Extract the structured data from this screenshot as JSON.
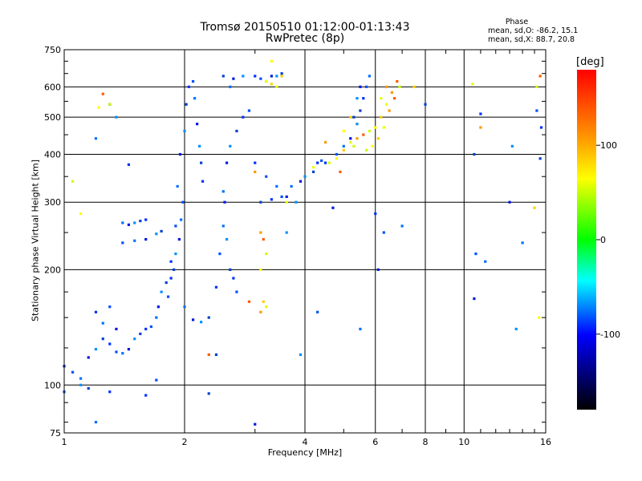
{
  "header": {
    "title_line1": "Tromsø 20150510 01:12:00-01:13:43",
    "title_line2": "RwPretec (8p)"
  },
  "phase_info": {
    "heading": "Phase",
    "o_stats": "mean, sd,O: -86.2, 15.1",
    "x_stats": "mean, sd,X:  88.7, 20.8"
  },
  "colorbar": {
    "unit": "[deg]",
    "range": [
      -180,
      180
    ],
    "ticks": [
      100,
      0,
      -100
    ],
    "tick_labels": [
      "100",
      "0",
      "-100"
    ],
    "colors": [
      "#ff0000",
      "#ffff00",
      "#00ff00",
      "#00ffff",
      "#0000ff",
      "#000000"
    ]
  },
  "chart_data": {
    "type": "scatter",
    "title": "Tromsø 20150510 01:12:00-01:13:43",
    "subtitle": "RwPretec (8p)",
    "xlabel": "Frequency [MHz]",
    "ylabel": "Stationary phase Virtual Height [km]",
    "x_scale": "log",
    "y_scale": "log",
    "xlim": [
      1,
      16
    ],
    "ylim": [
      75,
      750
    ],
    "grid": true,
    "x_ticks": [
      1,
      2,
      4,
      6,
      8,
      10,
      16
    ],
    "x_tick_labels": [
      "1",
      "2",
      "4",
      "6",
      "8",
      "10",
      "16"
    ],
    "y_ticks": [
      75,
      100,
      200,
      300,
      400,
      500,
      600,
      750
    ],
    "y_tick_labels": [
      "75",
      "100",
      "200",
      "300",
      "400",
      "500",
      "600",
      "750"
    ],
    "series": [
      {
        "mode": "o",
        "points": [
          [
            1.0,
            112
          ],
          [
            1.05,
            108
          ],
          [
            1.1,
            104
          ],
          [
            1.15,
            118
          ],
          [
            1.2,
            124
          ],
          [
            1.25,
            132
          ],
          [
            1.3,
            128
          ],
          [
            1.35,
            122
          ],
          [
            1.4,
            121
          ],
          [
            1.45,
            124
          ],
          [
            1.5,
            132
          ],
          [
            1.55,
            136
          ],
          [
            1.6,
            140
          ],
          [
            1.65,
            142
          ],
          [
            1.7,
            150
          ],
          [
            1.72,
            160
          ],
          [
            1.75,
            175
          ],
          [
            1.8,
            185
          ],
          [
            1.85,
            210
          ],
          [
            1.9,
            260
          ],
          [
            1.92,
            330
          ],
          [
            1.95,
            400
          ],
          [
            2.0,
            460
          ],
          [
            2.02,
            540
          ],
          [
            2.05,
            600
          ],
          [
            2.1,
            620
          ],
          [
            2.12,
            560
          ],
          [
            2.15,
            480
          ],
          [
            2.18,
            420
          ],
          [
            2.2,
            380
          ],
          [
            2.22,
            340
          ],
          [
            1.98,
            300
          ],
          [
            1.96,
            270
          ],
          [
            1.94,
            240
          ],
          [
            1.9,
            220
          ],
          [
            1.88,
            200
          ],
          [
            1.85,
            190
          ],
          [
            1.82,
            170
          ],
          [
            2.0,
            160
          ],
          [
            2.1,
            148
          ],
          [
            2.2,
            146
          ],
          [
            2.3,
            150
          ],
          [
            2.4,
            180
          ],
          [
            2.45,
            220
          ],
          [
            2.5,
            260
          ],
          [
            2.52,
            300
          ],
          [
            2.55,
            240
          ],
          [
            2.6,
            200
          ],
          [
            2.65,
            190
          ],
          [
            2.7,
            175
          ],
          [
            2.5,
            320
          ],
          [
            2.55,
            380
          ],
          [
            2.6,
            420
          ],
          [
            2.7,
            460
          ],
          [
            2.8,
            500
          ],
          [
            2.9,
            520
          ],
          [
            2.6,
            600
          ],
          [
            2.65,
            630
          ],
          [
            2.8,
            640
          ],
          [
            2.5,
            640
          ],
          [
            3.0,
            640
          ],
          [
            3.1,
            630
          ],
          [
            3.2,
            620
          ],
          [
            3.3,
            640
          ],
          [
            3.4,
            640
          ],
          [
            3.5,
            650
          ],
          [
            3.0,
            380
          ],
          [
            3.2,
            350
          ],
          [
            3.4,
            330
          ],
          [
            3.6,
            310
          ],
          [
            3.8,
            300
          ],
          [
            3.1,
            300
          ],
          [
            3.3,
            305
          ],
          [
            3.5,
            310
          ],
          [
            3.7,
            330
          ],
          [
            3.9,
            340
          ],
          [
            4.0,
            350
          ],
          [
            4.2,
            360
          ],
          [
            4.5,
            380
          ],
          [
            4.8,
            400
          ],
          [
            5.0,
            420
          ],
          [
            5.2,
            440
          ],
          [
            5.4,
            480
          ],
          [
            5.5,
            520
          ],
          [
            5.6,
            560
          ],
          [
            5.7,
            600
          ],
          [
            5.8,
            640
          ],
          [
            5.5,
            600
          ],
          [
            5.4,
            560
          ],
          [
            5.3,
            500
          ],
          [
            4.3,
            380
          ],
          [
            4.4,
            385
          ],
          [
            1.4,
            265
          ],
          [
            1.45,
            262
          ],
          [
            1.5,
            265
          ],
          [
            1.55,
            268
          ],
          [
            1.6,
            270
          ],
          [
            1.4,
            235
          ],
          [
            1.5,
            238
          ],
          [
            1.6,
            240
          ],
          [
            1.7,
            248
          ],
          [
            1.75,
            252
          ],
          [
            1.2,
            155
          ],
          [
            1.3,
            160
          ],
          [
            1.25,
            145
          ],
          [
            1.35,
            140
          ],
          [
            1.1,
            100
          ],
          [
            1.15,
            98
          ],
          [
            1.3,
            96
          ],
          [
            1.0,
            96
          ],
          [
            1.2,
            440
          ],
          [
            1.3,
            540
          ],
          [
            1.35,
            500
          ],
          [
            10.6,
            400
          ],
          [
            11.0,
            510
          ],
          [
            10.7,
            220
          ],
          [
            11.3,
            210
          ],
          [
            13.0,
            300
          ],
          [
            13.2,
            420
          ],
          [
            15.5,
            390
          ],
          [
            15.6,
            470
          ],
          [
            15.2,
            520
          ],
          [
            14.0,
            235
          ],
          [
            10.6,
            168
          ],
          [
            13.5,
            140
          ],
          [
            8.0,
            540
          ],
          [
            6.0,
            280
          ],
          [
            6.3,
            250
          ],
          [
            7.0,
            260
          ],
          [
            4.7,
            290
          ],
          [
            3.6,
            250
          ],
          [
            2.3,
            95
          ],
          [
            1.6,
            94
          ],
          [
            1.7,
            103
          ],
          [
            1.2,
            80
          ],
          [
            3.0,
            79
          ],
          [
            3.9,
            120
          ],
          [
            2.4,
            120
          ],
          [
            1.45,
            376
          ],
          [
            4.3,
            155
          ],
          [
            5.5,
            140
          ],
          [
            6.1,
            200
          ]
        ]
      },
      {
        "mode": "x",
        "points": [
          [
            3.2,
            620
          ],
          [
            3.3,
            610
          ],
          [
            3.4,
            600
          ],
          [
            3.1,
            250
          ],
          [
            3.15,
            240
          ],
          [
            3.2,
            220
          ],
          [
            3.1,
            200
          ],
          [
            3.15,
            165
          ],
          [
            3.2,
            160
          ],
          [
            3.1,
            155
          ],
          [
            2.9,
            165
          ],
          [
            4.6,
            380
          ],
          [
            4.8,
            390
          ],
          [
            5.0,
            410
          ],
          [
            5.2,
            430
          ],
          [
            5.4,
            440
          ],
          [
            5.6,
            450
          ],
          [
            5.8,
            460
          ],
          [
            6.0,
            470
          ],
          [
            6.2,
            500
          ],
          [
            6.4,
            540
          ],
          [
            6.6,
            580
          ],
          [
            6.8,
            620
          ],
          [
            5.7,
            410
          ],
          [
            5.9,
            420
          ],
          [
            6.1,
            440
          ],
          [
            6.3,
            470
          ],
          [
            6.5,
            520
          ],
          [
            6.7,
            560
          ],
          [
            6.9,
            600
          ],
          [
            5.0,
            460
          ],
          [
            5.2,
            500
          ],
          [
            6.2,
            560
          ],
          [
            6.4,
            600
          ],
          [
            1.25,
            575
          ],
          [
            1.3,
            540
          ],
          [
            1.22,
            530
          ],
          [
            7.5,
            600
          ],
          [
            10.5,
            610
          ],
          [
            11.0,
            470
          ],
          [
            15.5,
            640
          ],
          [
            15.2,
            600
          ],
          [
            15.4,
            150
          ],
          [
            15.0,
            290
          ],
          [
            4.2,
            370
          ],
          [
            4.5,
            430
          ],
          [
            4.9,
            360
          ],
          [
            5.3,
            420
          ],
          [
            3.3,
            700
          ],
          [
            3.5,
            640
          ],
          [
            3.6,
            300
          ],
          [
            3.0,
            360
          ],
          [
            2.3,
            120
          ],
          [
            1.05,
            340
          ],
          [
            1.1,
            280
          ]
        ]
      }
    ]
  }
}
